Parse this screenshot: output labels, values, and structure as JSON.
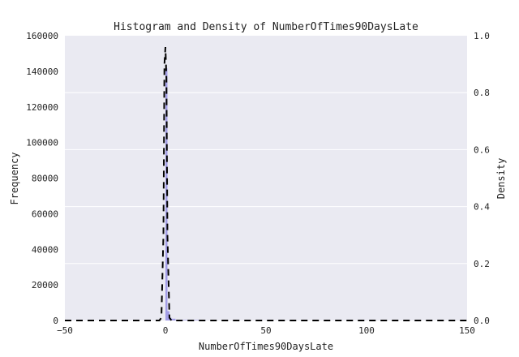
{
  "chart_data": {
    "type": "bar",
    "title": "Histogram and Density of NumberOfTimes90DaysLate",
    "xlabel": "NumberOfTimes90DaysLate",
    "ylabel": "Frequency",
    "y2label": "Density",
    "xlim": [
      -50,
      150
    ],
    "ylim": [
      0,
      160000
    ],
    "y2lim": [
      0,
      1.0
    ],
    "xticks": [
      "−50",
      "0",
      "50",
      "100",
      "150"
    ],
    "xtick_values": [
      -50,
      0,
      50,
      100,
      150
    ],
    "yticks": [
      "0",
      "20000",
      "40000",
      "60000",
      "80000",
      "100000",
      "120000",
      "140000",
      "160000"
    ],
    "ytick_values": [
      0,
      20000,
      40000,
      60000,
      80000,
      100000,
      120000,
      140000,
      160000
    ],
    "y2ticks": [
      "0.0",
      "0.2",
      "0.4",
      "0.6",
      "0.8",
      "1.0"
    ],
    "y2tick_values": [
      0,
      0.2,
      0.4,
      0.6,
      0.8,
      1.0
    ],
    "grid": true,
    "histogram": {
      "color": "#9b96e6",
      "bins": [
        {
          "x0": 0,
          "x1": 1,
          "count": 141660
        },
        {
          "x0": 1,
          "x1": 2,
          "count": 5243
        },
        {
          "x0": 2,
          "x1": 3,
          "count": 1555
        },
        {
          "x0": 3,
          "x1": 5,
          "count": 1000
        },
        {
          "x0": 5,
          "x1": 20,
          "count": 300
        },
        {
          "x0": 96,
          "x1": 99,
          "count": 269
        }
      ]
    },
    "density": {
      "style": "dashed",
      "color": "#000000",
      "x": [
        -50,
        -3,
        -2,
        -1,
        -0.5,
        0,
        0.5,
        1,
        2,
        3,
        150
      ],
      "y": [
        0,
        0,
        0.01,
        0.3,
        0.9,
        0.96,
        0.85,
        0.3,
        0.01,
        0,
        0
      ]
    },
    "colors": {
      "plot_background": "#eaeaf2",
      "grid": "#ffffff"
    }
  }
}
